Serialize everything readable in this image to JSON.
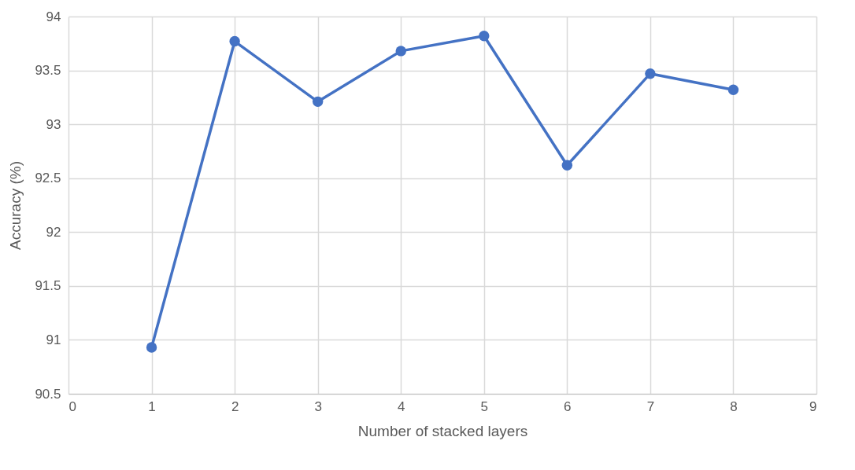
{
  "chart_data": {
    "type": "line",
    "xlabel": "Number of stacked layers",
    "ylabel": "Accuracy (%)",
    "x": [
      1,
      2,
      3,
      4,
      5,
      6,
      7,
      8
    ],
    "series": [
      {
        "color": "#4472c4",
        "values": [
          90.93,
          93.77,
          93.21,
          93.68,
          93.82,
          92.62,
          93.47,
          93.32
        ]
      }
    ],
    "xlim": [
      0,
      9
    ],
    "xticks": [
      0,
      1,
      2,
      3,
      4,
      5,
      6,
      7,
      8,
      9
    ],
    "ylim": [
      90.5,
      94
    ],
    "yticks": [
      90.5,
      91,
      91.5,
      92,
      92.5,
      93,
      93.5,
      94
    ],
    "grid": true,
    "marker": "circle",
    "line_style": "solid"
  }
}
